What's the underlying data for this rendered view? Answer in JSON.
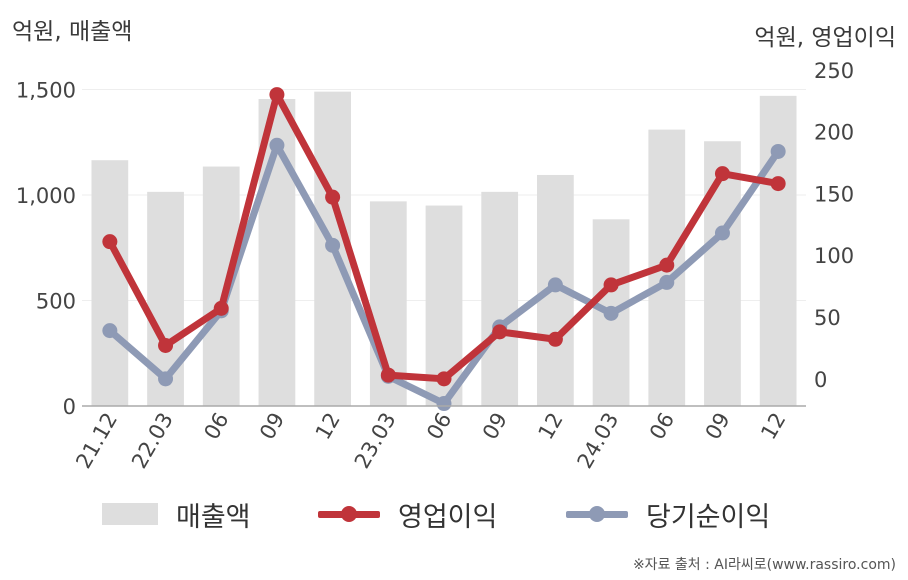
{
  "units": {
    "left": "억원, 매출액",
    "right": "억원, 영업이익"
  },
  "legend": {
    "revenue": "매출액",
    "operating": "영업이익",
    "net": "당기순이익"
  },
  "source": "※자료 출처 : AI라씨로(www.rassiro.com)",
  "colors": {
    "revenue": "#dedede",
    "operating": "#c0343a",
    "net": "#8e9ab5",
    "axis": "#aaaaaa",
    "grid": "#eeeeee"
  },
  "chart_data": {
    "type": "bar",
    "categories": [
      "21.12",
      "22.03",
      "06",
      "09",
      "12",
      "23.03",
      "06",
      "09",
      "12",
      "24.03",
      "06",
      "09",
      "12"
    ],
    "y_left": {
      "ticks": [
        0,
        500,
        1000,
        1500
      ],
      "tick_labels": [
        "0",
        "500",
        "1,000",
        "1,500"
      ],
      "range": [
        0,
        1640
      ]
    },
    "y_right": {
      "ticks": [
        0,
        50,
        100,
        150,
        200,
        250
      ],
      "tick_labels": [
        "0",
        "50",
        "100",
        "150",
        "200",
        "250"
      ],
      "range": [
        -22,
        258
      ]
    },
    "series": [
      {
        "name": "매출액",
        "type": "bar",
        "axis": "left",
        "values": [
          1165,
          1015,
          1135,
          1455,
          1490,
          970,
          950,
          1015,
          1095,
          885,
          1310,
          1255,
          1470
        ]
      },
      {
        "name": "영업이익",
        "type": "line",
        "axis": "right",
        "values": [
          111,
          27,
          57,
          230,
          147,
          3,
          0,
          38,
          32,
          76,
          92,
          166,
          158
        ]
      },
      {
        "name": "당기순이익",
        "type": "line",
        "axis": "right",
        "values": [
          39,
          0,
          55,
          189,
          108,
          2,
          -20,
          42,
          76,
          53,
          78,
          118,
          184
        ]
      }
    ]
  }
}
